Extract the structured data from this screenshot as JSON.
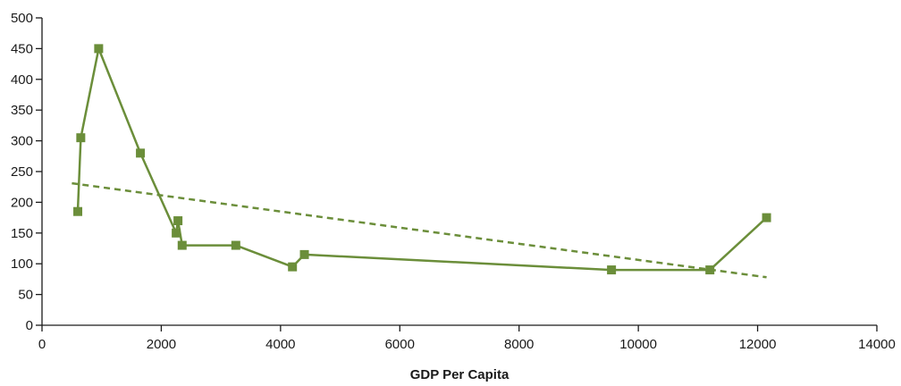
{
  "chart_data": {
    "type": "line",
    "title": "",
    "xlabel": "GDP Per Capita",
    "ylabel": "",
    "xlim": [
      0,
      14000
    ],
    "ylim": [
      0,
      500
    ],
    "x_ticks": [
      0,
      2000,
      4000,
      6000,
      8000,
      10000,
      12000,
      14000
    ],
    "y_ticks": [
      0,
      50,
      100,
      150,
      200,
      250,
      300,
      350,
      400,
      450,
      500
    ],
    "grid": false,
    "legend": "none",
    "colors": {
      "series": "#6b8e3a",
      "axis": "#1a1a1a"
    },
    "series": [
      {
        "style": "solid",
        "marker": "square",
        "points": [
          [
            600,
            185
          ],
          [
            650,
            305
          ],
          [
            950,
            450
          ],
          [
            1650,
            280
          ],
          [
            2250,
            150
          ],
          [
            2280,
            170
          ],
          [
            2350,
            130
          ],
          [
            3250,
            130
          ],
          [
            4200,
            95
          ],
          [
            4400,
            115
          ],
          [
            9550,
            90
          ],
          [
            11200,
            90
          ],
          [
            12150,
            175
          ]
        ]
      },
      {
        "style": "dashed",
        "marker": "none",
        "points": [
          [
            500,
            231
          ],
          [
            12150,
            78
          ]
        ]
      }
    ]
  }
}
